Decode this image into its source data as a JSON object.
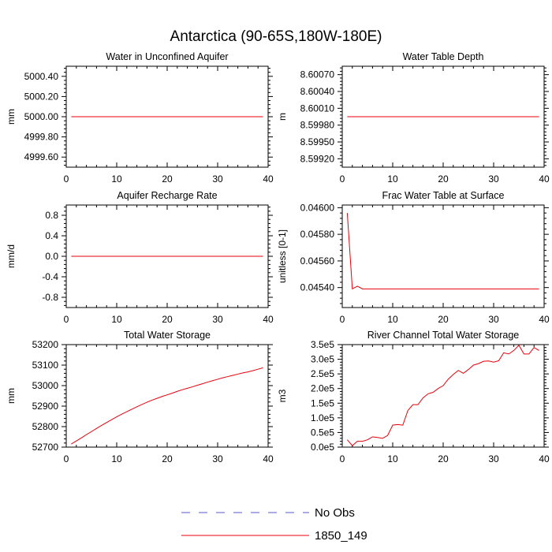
{
  "title": "Antarctica (90-65S,180W-180E)",
  "chart_data": [
    {
      "type": "line",
      "title": "Water in Unconfined Aquifer",
      "ylabel": "mm",
      "xlim": [
        0,
        40
      ],
      "ylim": [
        4999.5,
        5000.5
      ],
      "xticks": [
        0,
        10,
        20,
        30,
        40
      ],
      "xtick_labels": [
        "0",
        "10",
        "20",
        "30",
        "40"
      ],
      "yticks": [
        4999.6,
        4999.8,
        5000.0,
        5000.2,
        5000.4
      ],
      "ytick_labels": [
        "4999.60",
        "4999.80",
        "5000.00",
        "5000.20",
        "5000.40"
      ],
      "series": [
        {
          "name": "1850_149",
          "color": "#e8000b",
          "x": [
            1,
            39
          ],
          "y": [
            5000.0,
            5000.0
          ]
        }
      ]
    },
    {
      "type": "line",
      "title": "Water Table Depth",
      "ylabel": "m",
      "xlim": [
        0,
        40
      ],
      "ylim": [
        8.59905,
        8.60085
      ],
      "xticks": [
        0,
        10,
        20,
        30,
        40
      ],
      "xtick_labels": [
        "0",
        "10",
        "20",
        "30",
        "40"
      ],
      "yticks": [
        8.5992,
        8.5995,
        8.5998,
        8.6001,
        8.6004,
        8.6007
      ],
      "ytick_labels": [
        "8.59920",
        "8.59950",
        "8.59980",
        "8.60010",
        "8.60040",
        "8.60070"
      ],
      "series": [
        {
          "name": "1850_149",
          "color": "#e8000b",
          "x": [
            1,
            39
          ],
          "y": [
            8.59995,
            8.59995
          ]
        }
      ]
    },
    {
      "type": "line",
      "title": "Aquifer Recharge Rate",
      "ylabel": "mm/d",
      "xlim": [
        0,
        40
      ],
      "ylim": [
        -1.0,
        1.0
      ],
      "xticks": [
        0,
        10,
        20,
        30,
        40
      ],
      "xtick_labels": [
        "0",
        "10",
        "20",
        "30",
        "40"
      ],
      "yticks": [
        -0.8,
        -0.4,
        0.0,
        0.4,
        0.8
      ],
      "ytick_labels": [
        "-0.8",
        "-0.4",
        "0.0",
        "0.4",
        "0.8"
      ],
      "series": [
        {
          "name": "1850_149",
          "color": "#e8000b",
          "x": [
            1,
            39
          ],
          "y": [
            0.0,
            0.0
          ]
        }
      ]
    },
    {
      "type": "line",
      "title": "Frac Water Table at Surface",
      "ylabel": "unitless [0-1]",
      "xlim": [
        0,
        40
      ],
      "ylim": [
        0.04525,
        0.04602
      ],
      "xticks": [
        0,
        10,
        20,
        30,
        40
      ],
      "xtick_labels": [
        "0",
        "10",
        "20",
        "30",
        "40"
      ],
      "yticks": [
        0.0454,
        0.0456,
        0.0458,
        0.046
      ],
      "ytick_labels": [
        "0.04540",
        "0.04560",
        "0.04580",
        "0.04600"
      ],
      "series": [
        {
          "name": "1850_149",
          "color": "#e8000b",
          "x": [
            1,
            2,
            3,
            4,
            39
          ],
          "y": [
            0.04596,
            0.04539,
            0.04541,
            0.04539,
            0.04539
          ]
        }
      ]
    },
    {
      "type": "line",
      "title": "Total Water Storage",
      "ylabel": "mm",
      "xlim": [
        0,
        40
      ],
      "ylim": [
        52700,
        53200
      ],
      "xticks": [
        0,
        10,
        20,
        30,
        40
      ],
      "xtick_labels": [
        "0",
        "10",
        "20",
        "30",
        "40"
      ],
      "yticks": [
        52700,
        52800,
        52900,
        53000,
        53100,
        53200
      ],
      "ytick_labels": [
        "52700",
        "52800",
        "52900",
        "53000",
        "53100",
        "53200"
      ],
      "series": [
        {
          "name": "1850_149",
          "color": "#e8000b",
          "x": [
            1,
            2,
            3,
            4,
            5,
            6,
            7,
            8,
            9,
            10,
            11,
            12,
            13,
            14,
            15,
            16,
            17,
            18,
            19,
            20,
            21,
            22,
            23,
            24,
            25,
            26,
            27,
            28,
            29,
            30,
            31,
            32,
            33,
            34,
            35,
            36,
            37,
            38,
            39
          ],
          "y": [
            52715,
            52730,
            52745,
            52761,
            52776,
            52791,
            52806,
            52820,
            52834,
            52848,
            52861,
            52873,
            52885,
            52897,
            52908,
            52919,
            52929,
            52938,
            52947,
            52955,
            52963,
            52972,
            52980,
            52987,
            52994,
            53002,
            53009,
            53017,
            53024,
            53031,
            53038,
            53044,
            53050,
            53056,
            53062,
            53067,
            53073,
            53080,
            53087
          ]
        }
      ]
    },
    {
      "type": "line",
      "title": "River Channel Total Water Storage",
      "ylabel": "m3",
      "xlim": [
        0,
        40
      ],
      "ylim": [
        0,
        350000
      ],
      "xticks": [
        0,
        10,
        20,
        30,
        40
      ],
      "xtick_labels": [
        "0",
        "10",
        "20",
        "30",
        "40"
      ],
      "yticks": [
        0,
        50000,
        100000,
        150000,
        200000,
        250000,
        300000,
        350000
      ],
      "ytick_labels": [
        "0.0e5",
        "0.5e5",
        "1.0e5",
        "1.5e5",
        "2.0e5",
        "2.5e5",
        "3.0e5",
        "3.5e5"
      ],
      "series": [
        {
          "name": "1850_149",
          "color": "#e8000b",
          "x": [
            1,
            2,
            3,
            4,
            5,
            6,
            7,
            8,
            9,
            10,
            11,
            12,
            13,
            14,
            15,
            16,
            17,
            18,
            19,
            20,
            21,
            22,
            23,
            24,
            25,
            26,
            27,
            28,
            29,
            30,
            31,
            32,
            33,
            34,
            35,
            36,
            37,
            38,
            39
          ],
          "y": [
            25000,
            5000,
            20000,
            20000,
            25000,
            35000,
            33000,
            30000,
            40000,
            75000,
            77000,
            75000,
            125000,
            145000,
            145000,
            168000,
            182000,
            187000,
            200000,
            210000,
            232000,
            248000,
            262000,
            252000,
            265000,
            280000,
            285000,
            293000,
            294000,
            290000,
            295000,
            322000,
            318000,
            330000,
            348000,
            318000,
            318000,
            340000,
            330000
          ]
        }
      ]
    }
  ],
  "legend": {
    "placement": "bottom-center",
    "entries": [
      {
        "label": "No Obs",
        "style": "dashed",
        "color": "#5a5ac8"
      },
      {
        "label": "1850_149",
        "style": "solid",
        "color": "#e8000b"
      }
    ]
  }
}
